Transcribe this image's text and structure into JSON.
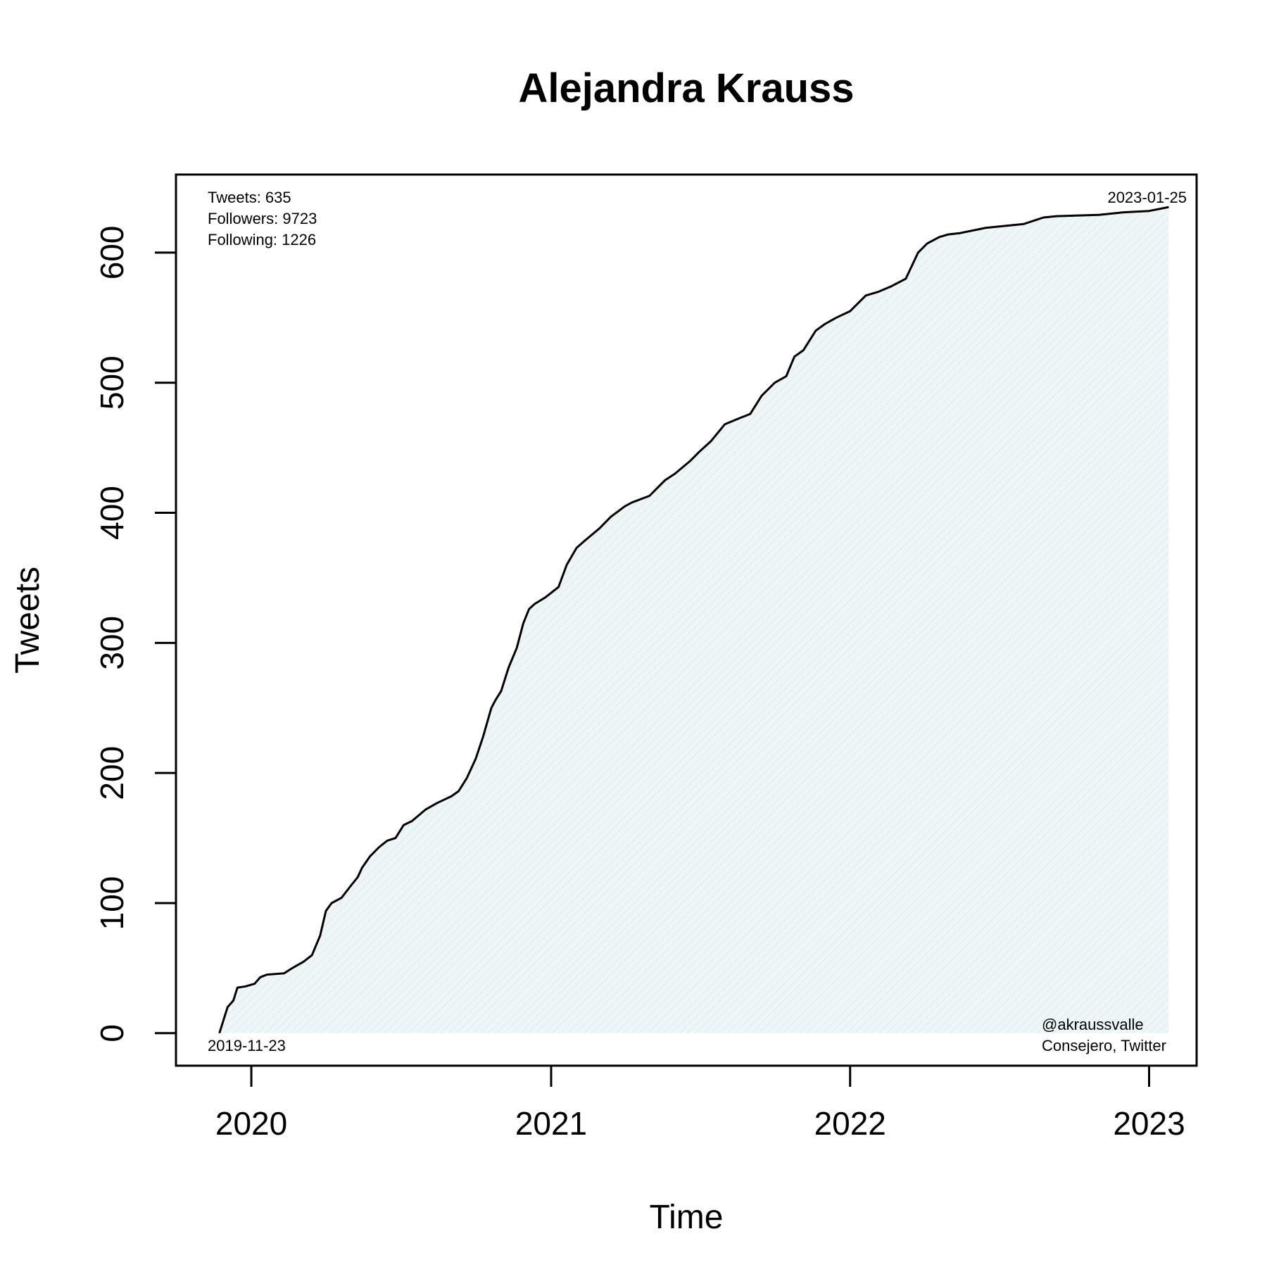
{
  "chart_data": {
    "type": "area",
    "title": "Alejandra Krauss",
    "xlabel": "Time",
    "ylabel": "Tweets",
    "xlim": [
      "2019-10-01",
      "2023-02-28"
    ],
    "ylim": [
      -25,
      660
    ],
    "x_ticks": [
      "2020-01-01",
      "2021-01-01",
      "2022-01-01",
      "2023-01-01"
    ],
    "x_tick_labels": [
      "2020",
      "2021",
      "2022",
      "2023"
    ],
    "y_ticks": [
      0,
      100,
      200,
      300,
      400,
      500,
      600
    ],
    "y_tick_labels": [
      "0",
      "100",
      "200",
      "300",
      "400",
      "500",
      "600"
    ],
    "grid": false,
    "fill_color": "#eaf4f6",
    "line_color": "#000000",
    "series": [
      {
        "x": [
          "2019-11-23",
          "2019-11-28",
          "2019-12-03",
          "2019-12-10",
          "2019-12-15",
          "2019-12-25",
          "2020-01-05",
          "2020-01-12",
          "2020-01-20",
          "2020-02-10",
          "2020-02-20",
          "2020-03-05",
          "2020-03-15",
          "2020-03-25",
          "2020-04-01",
          "2020-04-08",
          "2020-04-20",
          "2020-05-01",
          "2020-05-10",
          "2020-05-15",
          "2020-05-25",
          "2020-06-05",
          "2020-06-15",
          "2020-06-25",
          "2020-07-05",
          "2020-07-15",
          "2020-08-01",
          "2020-08-15",
          "2020-09-01",
          "2020-09-10",
          "2020-09-20",
          "2020-10-01",
          "2020-10-10",
          "2020-10-20",
          "2020-10-25",
          "2020-11-01",
          "2020-11-10",
          "2020-11-20",
          "2020-11-28",
          "2020-12-05",
          "2020-12-12",
          "2020-12-25",
          "2021-01-10",
          "2021-01-20",
          "2021-02-01",
          "2021-02-10",
          "2021-03-01",
          "2021-03-15",
          "2021-04-01",
          "2021-04-10",
          "2021-05-01",
          "2021-05-20",
          "2021-06-01",
          "2021-06-20",
          "2021-07-01",
          "2021-07-15",
          "2021-08-01",
          "2021-08-20",
          "2021-09-01",
          "2021-09-15",
          "2021-10-01",
          "2021-10-15",
          "2021-10-25",
          "2021-11-05",
          "2021-11-20",
          "2021-12-01",
          "2021-12-15",
          "2022-01-01",
          "2022-01-20",
          "2022-02-05",
          "2022-02-20",
          "2022-03-10",
          "2022-03-25",
          "2022-04-05",
          "2022-04-20",
          "2022-05-01",
          "2022-05-15",
          "2022-06-15",
          "2022-07-01",
          "2022-08-01",
          "2022-08-25",
          "2022-09-10",
          "2022-11-01",
          "2022-12-01",
          "2023-01-01",
          "2023-01-25"
        ],
        "y": [
          0,
          10,
          20,
          25,
          35,
          36,
          38,
          43,
          45,
          46,
          50,
          55,
          60,
          75,
          94,
          100,
          104,
          113,
          120,
          127,
          136,
          143,
          148,
          150,
          160,
          163,
          172,
          177,
          182,
          186,
          196,
          211,
          228,
          250,
          256,
          263,
          281,
          296,
          315,
          326,
          330,
          335,
          343,
          360,
          373,
          378,
          388,
          397,
          405,
          408,
          413,
          425,
          430,
          440,
          447,
          455,
          468,
          473,
          476,
          490,
          500,
          505,
          520,
          525,
          540,
          545,
          550,
          555,
          567,
          570,
          574,
          580,
          600,
          607,
          612,
          614,
          615,
          619,
          620,
          622,
          627,
          628,
          629,
          631,
          632,
          635
        ]
      }
    ]
  },
  "annotations": {
    "tweets": "Tweets: 635",
    "followers": "Followers: 9723",
    "following": "Following: 1226",
    "end_date": "2023-01-25",
    "start_date": "2019-11-23",
    "handle": "@akraussvalle",
    "source": "Consejero, Twitter"
  }
}
